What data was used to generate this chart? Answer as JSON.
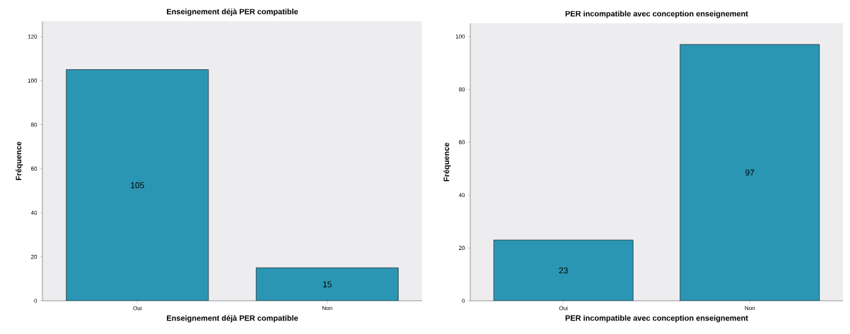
{
  "chart_data": [
    {
      "type": "bar",
      "title": "Enseignement déjà PER compatible",
      "xlabel": "Enseignement déjà PER compatible",
      "ylabel": "Fréquence",
      "categories": [
        "Oui",
        "Non"
      ],
      "values": [
        105,
        15
      ],
      "color": "#2b96b3",
      "ylim": [
        0,
        127
      ],
      "yticks": [
        0,
        20,
        40,
        60,
        80,
        100,
        120
      ],
      "data_labels": true
    },
    {
      "type": "bar",
      "title": "PER incompatible avec conception enseignement",
      "xlabel": "PER incompatible avec conception enseignement",
      "ylabel": "Fréquence",
      "categories": [
        "Oui",
        "Non"
      ],
      "values": [
        23,
        97
      ],
      "color": "#2b96b3",
      "ylim": [
        0,
        105
      ],
      "yticks": [
        0,
        20,
        40,
        60,
        80,
        100
      ],
      "data_labels": true
    }
  ]
}
